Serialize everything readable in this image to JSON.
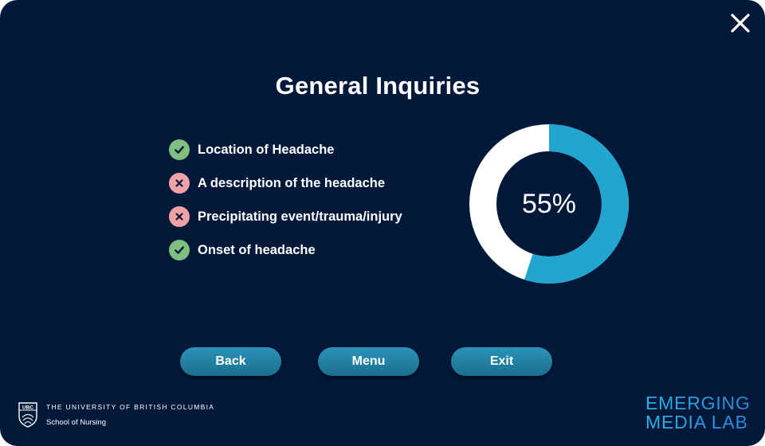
{
  "title": "General Inquiries",
  "checklist": [
    {
      "label": "Location of Headache",
      "status": "complete",
      "icon": "check-icon"
    },
    {
      "label": "A description of the headache",
      "status": "incomplete",
      "icon": "x-icon"
    },
    {
      "label": "Precipitating event/trauma/injury",
      "status": "incomplete",
      "icon": "x-icon"
    },
    {
      "label": "Onset of headache",
      "status": "complete",
      "icon": "check-icon"
    }
  ],
  "progress": {
    "percent": 55,
    "label": "55%"
  },
  "buttons": {
    "back": "Back",
    "menu": "Menu",
    "exit": "Exit"
  },
  "footer": {
    "ubc_crest_text": "UBC",
    "university": "THE UNIVERSITY OF BRITISH COLUMBIA",
    "school": "School of Nursing",
    "lab_line1": "EMERGING",
    "lab_line2": "MEDIA LAB"
  },
  "colors": {
    "background": "#02193a",
    "complete": "#7fbf7f",
    "incomplete": "#f2a1a6",
    "progress_fill": "#22a5cf",
    "progress_remaining": "#ffffff",
    "button": "#1f7fa2"
  }
}
